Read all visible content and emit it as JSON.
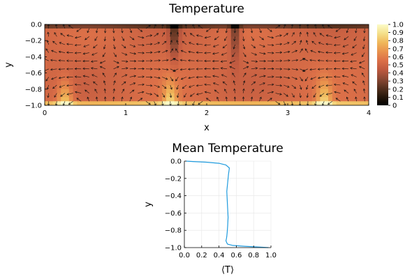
{
  "colors": {
    "colormap": [
      "#000000",
      "#2a1a0d",
      "#5a3320",
      "#8f4a35",
      "#c05a40",
      "#dc7048",
      "#e9924d",
      "#f0b85a",
      "#f5e08a",
      "#fcfbc8"
    ],
    "arrow": "#111111",
    "mean_line": "#1f9bde",
    "grid": "#e6e6e6"
  },
  "chart_data": [
    {
      "type": "heatmap",
      "title": "Temperature",
      "xlabel": "x",
      "ylabel": "y",
      "xlim": [
        0,
        4
      ],
      "ylim": [
        -1.0,
        0.0
      ],
      "xticks": [
        "0",
        "1",
        "2",
        "3",
        "4"
      ],
      "yticks": [
        "0.0",
        "−0.2",
        "−0.4",
        "−0.6",
        "−0.8",
        "−1.0"
      ],
      "colorbar": {
        "range": [
          0,
          1
        ],
        "ticks": [
          "0",
          "0.1",
          "0.2",
          "0.3",
          "0.4",
          "0.5",
          "0.6",
          "0.7",
          "0.8",
          "0.9",
          "1.0"
        ]
      },
      "grid": false,
      "overlay": "velocity-arrows",
      "features": {
        "background_value": 0.52,
        "hot_bottom_spots_x": [
          0.25,
          1.55,
          3.45
        ],
        "cold_plumes_x": [
          1.6,
          2.35
        ]
      }
    },
    {
      "type": "line",
      "title": "Mean Temperature",
      "xlabel": "⟨T⟩",
      "ylabel": "y",
      "xlim": [
        0.0,
        1.0
      ],
      "ylim": [
        -1.0,
        0.0
      ],
      "xticks": [
        "0.0",
        "0.2",
        "0.4",
        "0.6",
        "0.8",
        "1.0"
      ],
      "yticks": [
        "0.0",
        "−0.2",
        "−0.4",
        "−0.6",
        "−0.8",
        "−1.0"
      ],
      "grid": true,
      "series": [
        {
          "x": [
            0.02,
            0.1,
            0.25,
            0.4,
            0.48,
            0.52,
            0.51,
            0.5,
            0.49,
            0.495,
            0.5,
            0.505,
            0.5,
            0.495,
            0.49,
            0.485,
            0.48,
            0.49,
            0.5,
            0.56,
            0.7,
            0.85,
            0.97
          ],
          "y": [
            0.0,
            -0.005,
            -0.012,
            -0.025,
            -0.045,
            -0.08,
            -0.15,
            -0.25,
            -0.35,
            -0.45,
            -0.55,
            -0.65,
            -0.75,
            -0.82,
            -0.87,
            -0.9,
            -0.92,
            -0.945,
            -0.96,
            -0.975,
            -0.985,
            -0.993,
            -1.0
          ]
        }
      ]
    }
  ]
}
